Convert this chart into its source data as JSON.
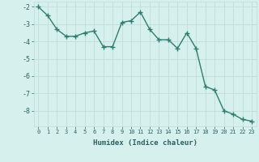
{
  "xlabel": "Humidex (Indice chaleur)",
  "ylabel": "",
  "x_values": [
    0,
    1,
    2,
    3,
    4,
    5,
    6,
    7,
    8,
    9,
    10,
    11,
    12,
    13,
    14,
    15,
    16,
    17,
    18,
    19,
    20,
    21,
    22,
    23
  ],
  "y_values": [
    -2.0,
    -2.5,
    -3.3,
    -3.7,
    -3.7,
    -3.5,
    -3.4,
    -4.3,
    -4.3,
    -2.9,
    -2.8,
    -2.3,
    -3.3,
    -3.9,
    -3.9,
    -4.4,
    -3.5,
    -4.4,
    -6.6,
    -6.8,
    -8.0,
    -8.2,
    -8.5,
    -8.6
  ],
  "line_color": "#2e7d6e",
  "marker_color": "#2e7d6e",
  "bg_color": "#d6f0ee",
  "grid_color": "#c0ddd9",
  "text_color": "#2e6060",
  "ylim": [
    -8.9,
    -1.7
  ],
  "xlim": [
    -0.5,
    23.5
  ],
  "yticks": [
    -2,
    -3,
    -4,
    -5,
    -6,
    -7,
    -8
  ],
  "xticks": [
    0,
    1,
    2,
    3,
    4,
    5,
    6,
    7,
    8,
    9,
    10,
    11,
    12,
    13,
    14,
    15,
    16,
    17,
    18,
    19,
    20,
    21,
    22,
    23
  ]
}
